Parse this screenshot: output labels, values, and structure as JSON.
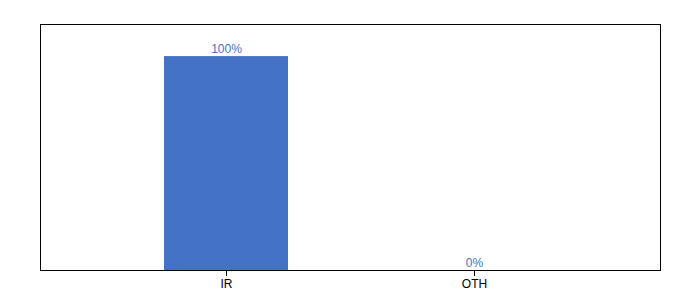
{
  "chart_data": {
    "type": "bar",
    "categories": [
      "IR",
      "OTH"
    ],
    "values": [
      100,
      0
    ],
    "value_labels": [
      "100%",
      "0%"
    ],
    "color": "#4472c4",
    "ylim": [
      0,
      115
    ],
    "data_labels": true,
    "tick_labels": "x",
    "grid": false
  }
}
